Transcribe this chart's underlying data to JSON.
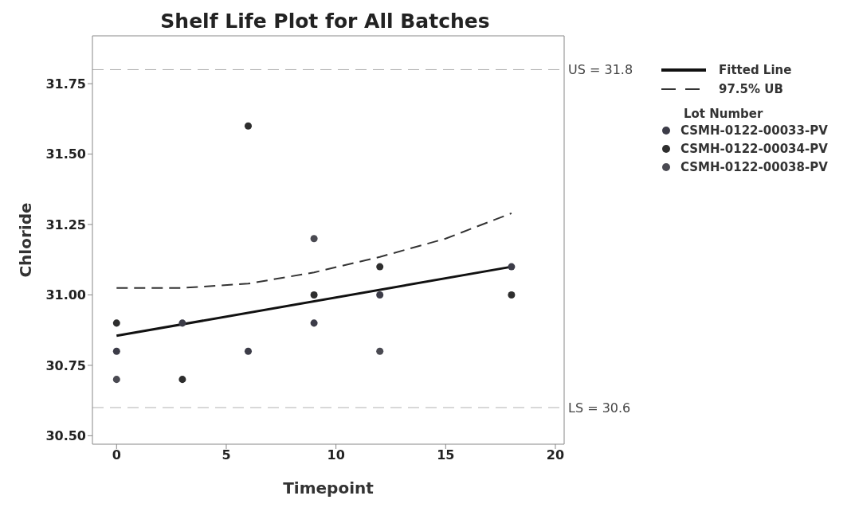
{
  "chart_data": {
    "type": "scatter",
    "title": "Shelf Life Plot for All Batches",
    "xlabel": "Timepoint",
    "ylabel": "Chloride",
    "legend_title": "Lot Number",
    "xlim": [
      -1.1,
      20.4
    ],
    "xticks": [
      0,
      5,
      10,
      15,
      20
    ],
    "ylim": [
      30.47,
      31.92
    ],
    "yticks": [
      {
        "value": 30.5,
        "label": "30.50"
      },
      {
        "value": 30.75,
        "label": "30.75"
      },
      {
        "value": 31.0,
        "label": "31.00"
      },
      {
        "value": 31.25,
        "label": "31.25"
      },
      {
        "value": 31.5,
        "label": "31.50"
      },
      {
        "value": 31.75,
        "label": "31.75"
      }
    ],
    "grid": false,
    "legend": "top right",
    "marker": "circle",
    "ref_lines": [
      {
        "axis": "y",
        "value": 31.8,
        "label": "US = 31.8",
        "color": "#b0b0b0",
        "line_style": "dashed"
      },
      {
        "axis": "y",
        "value": 30.6,
        "label": "LS = 30.6",
        "color": "#b0b0b0",
        "line_style": "dashed"
      }
    ],
    "series": [
      {
        "name": "Fitted Line",
        "type": "line",
        "marker": "none",
        "line_style": "solid",
        "color": "#111111",
        "x": [
          0,
          18
        ],
        "values": [
          30.855,
          31.1
        ]
      },
      {
        "name": "97.5% UB",
        "type": "line",
        "marker": "none",
        "line_style": "dashed",
        "color": "#333333",
        "x": [
          0,
          3,
          6,
          9,
          12,
          15,
          18
        ],
        "values": [
          31.025,
          31.025,
          31.04,
          31.08,
          31.135,
          31.2,
          31.29
        ]
      },
      {
        "name": "CSMH-0122-00033-PV",
        "color": "#3c3c48",
        "x": [
          0,
          3,
          6,
          9,
          12,
          18
        ],
        "values": [
          30.8,
          30.9,
          30.8,
          30.9,
          31.0,
          31.1
        ]
      },
      {
        "name": "CSMH-0122-00034-PV",
        "color": "#2e2e2e",
        "x": [
          0,
          3,
          6,
          9,
          12,
          18
        ],
        "values": [
          30.9,
          30.7,
          31.6,
          31.0,
          31.1,
          31.0
        ]
      },
      {
        "name": "CSMH-0122-00038-PV",
        "color": "#4a4a52",
        "x": [
          0,
          9,
          12
        ],
        "values": [
          30.7,
          31.2,
          30.8
        ]
      }
    ]
  }
}
